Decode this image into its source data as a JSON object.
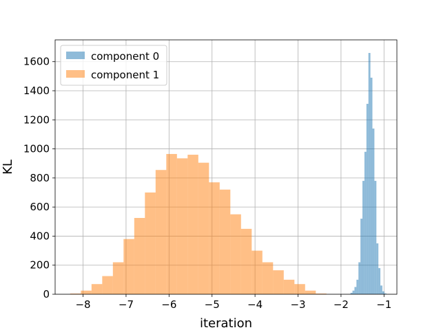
{
  "chart_data": {
    "type": "histogram",
    "xlabel": "iteration",
    "ylabel": "KL",
    "xlim": [
      -8.65,
      -0.7
    ],
    "ylim": [
      0,
      1750
    ],
    "x_ticks": [
      -8,
      -7,
      -6,
      -5,
      -4,
      -3,
      -2,
      -1
    ],
    "y_ticks": [
      0,
      200,
      400,
      600,
      800,
      1000,
      1200,
      1400,
      1600
    ],
    "grid": true,
    "legend_position": "top-left",
    "series": [
      {
        "name": "component 0",
        "color": "#1f77b4",
        "alpha": 0.5,
        "bin_start": -1.78,
        "bin_width": 0.0464,
        "counts": [
          10,
          25,
          50,
          100,
          220,
          520,
          780,
          980,
          1310,
          1660,
          1490,
          1140,
          780,
          350,
          180,
          60,
          20,
          6
        ]
      },
      {
        "name": "component 1",
        "color": "#ff7f0e",
        "alpha": 0.5,
        "bin_start": -8.3,
        "bin_width": 0.2484,
        "counts": [
          5,
          25,
          70,
          125,
          220,
          380,
          525,
          700,
          855,
          965,
          935,
          960,
          905,
          770,
          720,
          550,
          450,
          300,
          220,
          165,
          100,
          70,
          25,
          5
        ]
      }
    ]
  }
}
